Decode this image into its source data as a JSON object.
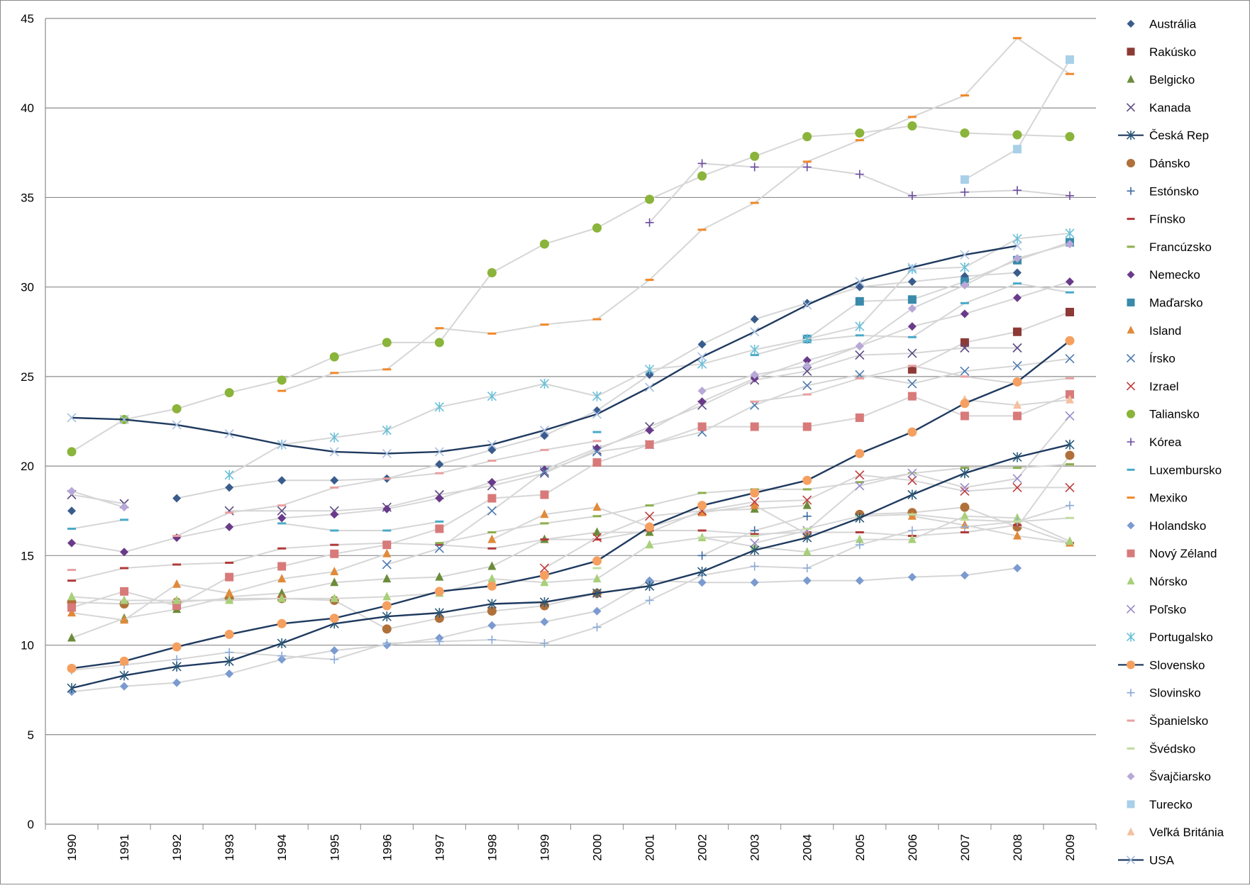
{
  "chart_data": {
    "type": "line",
    "title": "",
    "xlabel": "",
    "ylabel": "",
    "ylim": [
      0,
      45
    ],
    "yticks": [
      0,
      5,
      10,
      15,
      20,
      25,
      30,
      35,
      40,
      45
    ],
    "grid": "horizontal",
    "legend_position": "right",
    "categories": [
      "1990",
      "1991",
      "1992",
      "1993",
      "1994",
      "1995",
      "1996",
      "1997",
      "1998",
      "1999",
      "2000",
      "2001",
      "2002",
      "2003",
      "2004",
      "2005",
      "2006",
      "2007",
      "2008",
      "2009"
    ],
    "series": [
      {
        "name": "Austrália",
        "marker": "diamond",
        "color": "#3a5c8c",
        "highlight": false,
        "values": [
          17.5,
          null,
          18.2,
          18.8,
          19.2,
          19.2,
          19.3,
          20.1,
          20.9,
          21.7,
          23.1,
          25.1,
          26.8,
          28.2,
          29.1,
          30.0,
          30.3,
          30.6,
          30.8,
          null
        ]
      },
      {
        "name": "Rakúsko",
        "marker": "square",
        "color": "#8c3a36",
        "highlight": false,
        "values": [
          null,
          null,
          null,
          null,
          null,
          null,
          null,
          null,
          null,
          null,
          null,
          null,
          null,
          null,
          null,
          null,
          25.4,
          26.9,
          27.5,
          28.6
        ]
      },
      {
        "name": "Belgicko",
        "marker": "triangle",
        "color": "#6b8c3a",
        "highlight": false,
        "values": [
          10.4,
          11.5,
          12.0,
          12.7,
          12.9,
          13.5,
          13.7,
          13.8,
          14.4,
          15.9,
          16.3,
          16.3,
          17.5,
          17.6,
          17.8,
          null,
          null,
          null,
          null,
          null
        ]
      },
      {
        "name": "Kanada",
        "marker": "x",
        "color": "#5b4a82",
        "highlight": false,
        "values": [
          18.4,
          17.9,
          null,
          17.5,
          17.5,
          17.5,
          17.7,
          18.4,
          18.9,
          19.6,
          20.9,
          22.2,
          23.4,
          24.8,
          25.3,
          26.2,
          26.3,
          26.6,
          26.6,
          null
        ]
      },
      {
        "name": "Česká Rep",
        "marker": "asterisk",
        "color": "#2a5a7a",
        "highlight": true,
        "values": [
          7.6,
          8.3,
          8.8,
          9.1,
          10.1,
          11.2,
          11.6,
          11.8,
          12.3,
          12.4,
          12.9,
          13.3,
          14.1,
          15.3,
          16.0,
          17.1,
          18.4,
          19.6,
          20.5,
          21.2
        ]
      },
      {
        "name": "Dánsko",
        "marker": "circle",
        "color": "#b0703a",
        "highlight": false,
        "values": [
          12.4,
          12.3,
          12.4,
          12.6,
          12.6,
          12.5,
          10.9,
          11.5,
          11.9,
          12.2,
          12.9,
          null,
          null,
          null,
          null,
          17.3,
          17.4,
          17.7,
          16.6,
          20.6
        ]
      },
      {
        "name": "Estónsko",
        "marker": "plus",
        "color": "#3a6aa0",
        "highlight": false,
        "values": [
          null,
          null,
          null,
          null,
          null,
          null,
          null,
          null,
          null,
          null,
          null,
          null,
          15.0,
          16.4,
          17.2,
          null,
          null,
          null,
          null,
          null
        ]
      },
      {
        "name": "Fínsko",
        "marker": "dash",
        "color": "#b03a3a",
        "highlight": false,
        "values": [
          13.6,
          14.3,
          14.5,
          14.6,
          15.4,
          15.6,
          15.7,
          15.6,
          15.4,
          15.9,
          15.9,
          16.4,
          16.4,
          16.2,
          16.3,
          16.3,
          16.1,
          16.3,
          16.7,
          15.7
        ]
      },
      {
        "name": "Francúzsko",
        "marker": "dash",
        "color": "#8cae4a",
        "highlight": false,
        "values": [
          null,
          null,
          null,
          null,
          null,
          null,
          null,
          15.7,
          16.3,
          16.8,
          17.2,
          17.8,
          18.5,
          18.7,
          18.7,
          19.1,
          19.6,
          19.9,
          19.9,
          20.1
        ]
      },
      {
        "name": "Nemecko",
        "marker": "diamond",
        "color": "#6a3a8a",
        "highlight": false,
        "values": [
          15.7,
          15.2,
          16.0,
          16.6,
          17.1,
          17.3,
          17.6,
          18.2,
          19.1,
          19.8,
          21.0,
          22.0,
          23.6,
          24.9,
          25.9,
          26.7,
          27.8,
          28.5,
          29.4,
          30.3
        ]
      },
      {
        "name": "Maďarsko",
        "marker": "square",
        "color": "#3a8aaa",
        "highlight": false,
        "values": [
          null,
          null,
          null,
          null,
          null,
          null,
          null,
          null,
          null,
          null,
          null,
          null,
          null,
          null,
          27.1,
          29.2,
          29.3,
          30.3,
          31.5,
          32.5
        ]
      },
      {
        "name": "Island",
        "marker": "triangle",
        "color": "#e08a3a",
        "highlight": false,
        "values": [
          11.8,
          11.4,
          13.4,
          12.9,
          13.7,
          14.1,
          15.1,
          null,
          15.9,
          17.3,
          17.7,
          16.6,
          17.4,
          17.8,
          16.2,
          null,
          17.2,
          16.7,
          16.1,
          15.7
        ]
      },
      {
        "name": "Írsko",
        "marker": "x",
        "color": "#4a7ab0",
        "highlight": false,
        "values": [
          null,
          null,
          null,
          null,
          null,
          null,
          14.5,
          15.4,
          17.5,
          19.7,
          20.8,
          21.2,
          21.9,
          23.4,
          24.5,
          25.1,
          24.6,
          25.3,
          25.6,
          26.0
        ]
      },
      {
        "name": "Izrael",
        "marker": "x",
        "color": "#c03a3a",
        "highlight": false,
        "values": [
          null,
          null,
          null,
          null,
          null,
          null,
          null,
          null,
          null,
          14.3,
          16.0,
          17.2,
          17.5,
          18.0,
          18.1,
          19.5,
          19.2,
          18.6,
          18.8,
          18.8
        ]
      },
      {
        "name": "Taliansko",
        "marker": "circle",
        "color": "#8ab43a",
        "highlight": false,
        "values": [
          20.8,
          22.6,
          23.2,
          24.1,
          24.8,
          26.1,
          26.9,
          26.9,
          30.8,
          32.4,
          33.3,
          34.9,
          36.2,
          37.3,
          38.4,
          38.6,
          39.0,
          38.6,
          38.5,
          38.4
        ]
      },
      {
        "name": "Kórea",
        "marker": "plus",
        "color": "#6a4aa0",
        "highlight": false,
        "values": [
          null,
          null,
          null,
          null,
          null,
          null,
          null,
          null,
          null,
          null,
          null,
          33.6,
          36.9,
          36.7,
          36.7,
          36.3,
          35.1,
          35.3,
          35.4,
          35.1
        ]
      },
      {
        "name": "Luxembursko",
        "marker": "dash",
        "color": "#4aaac8",
        "highlight": false,
        "values": [
          16.5,
          17.0,
          null,
          null,
          16.8,
          16.4,
          16.4,
          16.9,
          null,
          null,
          21.9,
          null,
          null,
          26.2,
          27.0,
          27.3,
          27.2,
          29.1,
          30.2,
          29.7
        ]
      },
      {
        "name": "Mexiko",
        "marker": "dash",
        "color": "#f0882a",
        "highlight": false,
        "values": [
          null,
          null,
          null,
          null,
          24.2,
          25.2,
          25.4,
          27.7,
          27.4,
          27.9,
          28.2,
          30.4,
          33.2,
          34.7,
          37.0,
          38.2,
          39.5,
          40.7,
          43.9,
          41.9
        ]
      },
      {
        "name": "Holandsko",
        "marker": "diamond",
        "color": "#7a9ad0",
        "highlight": false,
        "values": [
          7.4,
          7.7,
          7.9,
          8.4,
          9.2,
          9.7,
          10.0,
          10.4,
          11.1,
          11.3,
          11.9,
          13.6,
          13.5,
          13.5,
          13.6,
          13.6,
          13.8,
          13.9,
          14.3,
          null
        ]
      },
      {
        "name": "Nový Zéland",
        "marker": "square",
        "color": "#d87a7a",
        "highlight": false,
        "values": [
          12.1,
          13.0,
          12.2,
          13.8,
          14.4,
          15.1,
          15.6,
          16.5,
          18.2,
          18.4,
          20.2,
          21.2,
          22.2,
          22.2,
          22.2,
          22.7,
          23.9,
          22.8,
          22.8,
          24.0
        ]
      },
      {
        "name": "Nórsko",
        "marker": "triangle",
        "color": "#a8d07a",
        "highlight": false,
        "values": [
          12.7,
          12.5,
          12.5,
          12.5,
          12.6,
          12.6,
          12.7,
          12.9,
          13.7,
          13.5,
          13.7,
          15.6,
          16.0,
          15.5,
          15.2,
          15.9,
          15.9,
          17.2,
          17.1,
          15.8
        ]
      },
      {
        "name": "Poľsko",
        "marker": "x",
        "color": "#9a8ac8",
        "highlight": false,
        "values": [
          null,
          null,
          null,
          null,
          null,
          null,
          null,
          null,
          null,
          null,
          null,
          null,
          null,
          15.7,
          16.4,
          18.9,
          19.6,
          18.8,
          19.3,
          22.8
        ]
      },
      {
        "name": "Portugalsko",
        "marker": "asterisk",
        "color": "#6ac0d8",
        "highlight": false,
        "values": [
          null,
          null,
          null,
          19.5,
          21.2,
          21.6,
          22.0,
          23.3,
          23.9,
          24.6,
          23.9,
          25.4,
          25.7,
          26.5,
          27.1,
          27.8,
          31.0,
          31.1,
          32.7,
          33.0
        ]
      },
      {
        "name": "Slovensko",
        "marker": "circle",
        "color": "#f5a060",
        "highlight": true,
        "values": [
          8.7,
          9.1,
          9.9,
          10.6,
          11.2,
          11.5,
          12.2,
          13.0,
          13.3,
          13.9,
          14.7,
          16.6,
          17.8,
          18.5,
          19.2,
          20.7,
          21.9,
          23.5,
          24.7,
          27.0
        ]
      },
      {
        "name": "Slovinsko",
        "marker": "plus",
        "color": "#8aaad8",
        "highlight": false,
        "values": [
          8.6,
          8.9,
          9.2,
          9.6,
          9.4,
          9.2,
          10.1,
          10.2,
          10.3,
          10.1,
          11.0,
          12.5,
          13.9,
          14.4,
          14.3,
          15.6,
          16.4,
          16.6,
          16.9,
          17.8
        ]
      },
      {
        "name": "Španielsko",
        "marker": "dash",
        "color": "#e8a0a0",
        "highlight": false,
        "values": [
          14.2,
          null,
          16.1,
          17.4,
          17.8,
          18.8,
          19.3,
          19.6,
          20.3,
          20.9,
          21.4,
          null,
          null,
          23.6,
          24.0,
          24.9,
          25.6,
          25.0,
          24.6,
          24.9
        ]
      },
      {
        "name": "Švédsko",
        "marker": "dash",
        "color": "#c0dca0",
        "highlight": false,
        "values": [
          null,
          null,
          null,
          null,
          null,
          null,
          null,
          null,
          null,
          null,
          14.3,
          null,
          16.0,
          16.1,
          16.5,
          17.2,
          17.3,
          17.0,
          16.9,
          17.1
        ]
      },
      {
        "name": "Švajčiarsko",
        "marker": "diamond",
        "color": "#b8a8d8",
        "highlight": false,
        "values": [
          18.6,
          17.7,
          null,
          null,
          null,
          null,
          null,
          null,
          null,
          null,
          null,
          null,
          24.2,
          25.1,
          25.6,
          26.7,
          28.8,
          30.1,
          31.6,
          32.4
        ]
      },
      {
        "name": "Turecko",
        "marker": "square",
        "color": "#a8d0e8",
        "highlight": false,
        "values": [
          null,
          null,
          null,
          null,
          null,
          null,
          null,
          null,
          null,
          null,
          null,
          null,
          null,
          null,
          null,
          null,
          null,
          36.0,
          37.7,
          42.7
        ]
      },
      {
        "name": "Veľká Británia",
        "marker": "triangle",
        "color": "#f5c0a0",
        "highlight": false,
        "values": [
          null,
          null,
          null,
          null,
          null,
          null,
          null,
          null,
          null,
          null,
          null,
          null,
          null,
          null,
          null,
          null,
          null,
          23.7,
          23.4,
          23.7
        ]
      },
      {
        "name": "USA",
        "marker": "x",
        "color": "#a8c0e0",
        "highlight": true,
        "values": [
          22.7,
          22.6,
          22.3,
          21.8,
          21.2,
          20.8,
          20.7,
          20.8,
          21.2,
          22.0,
          22.9,
          24.4,
          26.1,
          27.5,
          29.0,
          30.3,
          31.1,
          31.8,
          32.3,
          null
        ]
      }
    ]
  }
}
